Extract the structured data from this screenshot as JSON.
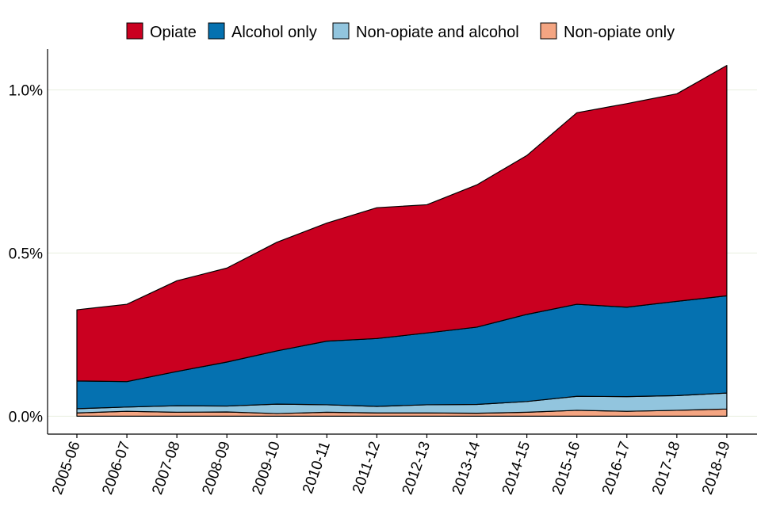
{
  "chart_data": {
    "type": "area",
    "stacked": true,
    "categories": [
      "2005-06",
      "2006-07",
      "2007-08",
      "2008-09",
      "2009-10",
      "2010-11",
      "2011-12",
      "2012-13",
      "2013-14",
      "2014-15",
      "2015-16",
      "2016-17",
      "2017-18",
      "2018-19"
    ],
    "series": [
      {
        "name": "Non-opiate only",
        "color": "#f4a582",
        "values": [
          0.01,
          0.015,
          0.012,
          0.013,
          0.008,
          0.012,
          0.01,
          0.01,
          0.009,
          0.012,
          0.018,
          0.015,
          0.018,
          0.022
        ]
      },
      {
        "name": "Non-opiate and alcohol",
        "color": "#92c5de",
        "values": [
          0.013,
          0.013,
          0.02,
          0.018,
          0.029,
          0.023,
          0.02,
          0.025,
          0.027,
          0.033,
          0.043,
          0.045,
          0.045,
          0.049
        ]
      },
      {
        "name": "Alcohol only",
        "color": "#0571b0",
        "values": [
          0.085,
          0.078,
          0.105,
          0.135,
          0.163,
          0.195,
          0.208,
          0.22,
          0.237,
          0.267,
          0.282,
          0.274,
          0.289,
          0.298
        ]
      },
      {
        "name": "Opiate",
        "color": "#ca0020",
        "values": [
          0.218,
          0.237,
          0.278,
          0.288,
          0.333,
          0.362,
          0.401,
          0.393,
          0.436,
          0.487,
          0.587,
          0.624,
          0.636,
          0.706
        ]
      }
    ],
    "legend_order": [
      "Opiate",
      "Alcohol only",
      "Non-opiate and alcohol",
      "Non-opiate only"
    ],
    "yticks": [
      0.0,
      0.5,
      1.0
    ],
    "ytick_labels": [
      "0.0%",
      "0.5%",
      "1.0%"
    ],
    "ylim": [
      -0.055,
      1.125
    ],
    "legend_position": "top",
    "grid": "horizontal",
    "title": "",
    "xlabel": "",
    "ylabel": ""
  }
}
